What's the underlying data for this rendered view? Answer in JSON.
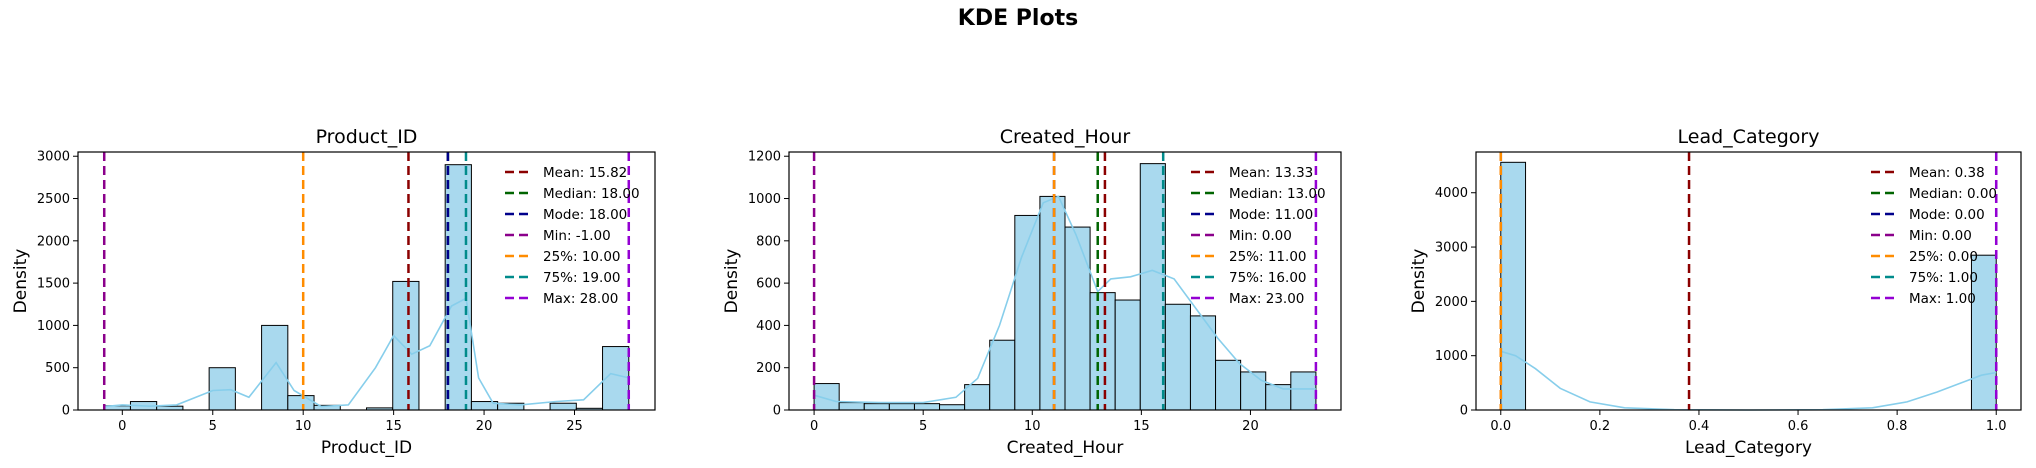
{
  "figure": {
    "suptitle": "KDE Plots"
  },
  "colors": {
    "bar_fill": "#a9d9ee",
    "bar_edge": "#000000",
    "kde": "#87ceeb",
    "mean": "#8b0000",
    "median": "#006400",
    "mode": "#00008b",
    "min": "#8b008b",
    "p25": "#ff8c00",
    "p75": "#008b8b",
    "max": "#9400d3"
  },
  "chart_data": [
    {
      "type": "bar",
      "title": "Product_ID",
      "xlabel": "Product_ID",
      "ylabel": "Density",
      "xlim": [
        -2.45,
        29.45
      ],
      "ylim": [
        0,
        3050
      ],
      "xticks": [
        0,
        5,
        10,
        15,
        20,
        25
      ],
      "yticks": [
        0,
        500,
        1000,
        1500,
        2000,
        2500,
        3000
      ],
      "histogram": {
        "bin_start": -1,
        "bin_width": 1.45,
        "counts": [
          50,
          100,
          45,
          0,
          500,
          0,
          1000,
          170,
          55,
          0,
          25,
          1520,
          0,
          2900,
          100,
          80,
          0,
          80,
          20,
          750
        ]
      },
      "kde": [
        [
          -1,
          40
        ],
        [
          0,
          60
        ],
        [
          1.5,
          45
        ],
        [
          3,
          60
        ],
        [
          5,
          230
        ],
        [
          6,
          240
        ],
        [
          7,
          150
        ],
        [
          8.5,
          560
        ],
        [
          9.5,
          230
        ],
        [
          11,
          40
        ],
        [
          12.5,
          60
        ],
        [
          14,
          500
        ],
        [
          15,
          880
        ],
        [
          16,
          660
        ],
        [
          17,
          760
        ],
        [
          18.2,
          1230
        ],
        [
          19,
          1320
        ],
        [
          19.7,
          380
        ],
        [
          20.5,
          80
        ],
        [
          22,
          60
        ],
        [
          24,
          100
        ],
        [
          25.5,
          120
        ],
        [
          27,
          430
        ],
        [
          28,
          380
        ]
      ],
      "stats": [
        {
          "key": "mean",
          "label": "Mean: 15.82",
          "value": 15.82
        },
        {
          "key": "median",
          "label": "Median: 18.00",
          "value": 18.0
        },
        {
          "key": "mode",
          "label": "Mode: 18.00",
          "value": 18.0
        },
        {
          "key": "min",
          "label": "Min: -1.00",
          "value": -1.0
        },
        {
          "key": "p25",
          "label": "25%: 10.00",
          "value": 10.0
        },
        {
          "key": "p75",
          "label": "75%: 19.00",
          "value": 19.0
        },
        {
          "key": "max",
          "label": "Max: 28.00",
          "value": 28.0
        }
      ],
      "legend": "upper right"
    },
    {
      "type": "bar",
      "title": "Created_Hour",
      "xlabel": "Created_Hour",
      "ylabel": "Density",
      "xlim": [
        -1.15,
        24.15
      ],
      "ylim": [
        0,
        1220
      ],
      "xticks": [
        0,
        5,
        10,
        15,
        20
      ],
      "yticks": [
        0,
        200,
        400,
        600,
        800,
        1000,
        1200
      ],
      "histogram": {
        "bin_start": 0,
        "bin_width": 1.15,
        "counts": [
          125,
          35,
          30,
          30,
          30,
          25,
          120,
          330,
          920,
          1010,
          865,
          555,
          520,
          1165,
          500,
          445,
          235,
          180,
          120,
          180
        ]
      },
      "kde": [
        [
          0,
          70
        ],
        [
          1,
          40
        ],
        [
          3,
          35
        ],
        [
          5,
          35
        ],
        [
          6.5,
          60
        ],
        [
          7.5,
          150
        ],
        [
          8.5,
          400
        ],
        [
          9.5,
          720
        ],
        [
          10.5,
          980
        ],
        [
          11.2,
          1010
        ],
        [
          12,
          830
        ],
        [
          13,
          560
        ],
        [
          13.6,
          620
        ],
        [
          14.5,
          630
        ],
        [
          15.5,
          660
        ],
        [
          16.5,
          620
        ],
        [
          17.5,
          480
        ],
        [
          18.5,
          340
        ],
        [
          19.5,
          220
        ],
        [
          20.5,
          140
        ],
        [
          21.5,
          100
        ],
        [
          23,
          100
        ]
      ],
      "stats": [
        {
          "key": "mean",
          "label": "Mean: 13.33",
          "value": 13.33
        },
        {
          "key": "median",
          "label": "Median: 13.00",
          "value": 13.0
        },
        {
          "key": "mode",
          "label": "Mode: 11.00",
          "value": 11.0
        },
        {
          "key": "min",
          "label": "Min: 0.00",
          "value": 0.0
        },
        {
          "key": "p25",
          "label": "25%: 11.00",
          "value": 11.0
        },
        {
          "key": "p75",
          "label": "75%: 16.00",
          "value": 16.0
        },
        {
          "key": "max",
          "label": "Max: 23.00",
          "value": 23.0
        }
      ],
      "legend": "upper right"
    },
    {
      "type": "bar",
      "title": "Lead_Category",
      "xlabel": "Lead_Category",
      "ylabel": "Density",
      "xlim": [
        -0.05,
        1.05
      ],
      "ylim": [
        0,
        4750
      ],
      "xticks": [
        0.0,
        0.2,
        0.4,
        0.6,
        0.8,
        1.0
      ],
      "yticks": [
        0,
        1000,
        2000,
        3000,
        4000
      ],
      "histogram": {
        "bin_start": 0,
        "bin_width": 0.05,
        "counts": [
          4560,
          0,
          0,
          0,
          0,
          0,
          0,
          0,
          0,
          0,
          0,
          0,
          0,
          0,
          0,
          0,
          0,
          0,
          0,
          2850
        ]
      },
      "kde": [
        [
          0,
          1080
        ],
        [
          0.03,
          1000
        ],
        [
          0.07,
          760
        ],
        [
          0.12,
          400
        ],
        [
          0.18,
          150
        ],
        [
          0.25,
          40
        ],
        [
          0.35,
          5
        ],
        [
          0.5,
          0
        ],
        [
          0.65,
          5
        ],
        [
          0.75,
          40
        ],
        [
          0.82,
          150
        ],
        [
          0.88,
          330
        ],
        [
          0.93,
          500
        ],
        [
          0.97,
          640
        ],
        [
          1,
          690
        ]
      ],
      "stats": [
        {
          "key": "mean",
          "label": "Mean: 0.38",
          "value": 0.38
        },
        {
          "key": "median",
          "label": "Median: 0.00",
          "value": 0.0
        },
        {
          "key": "mode",
          "label": "Mode: 0.00",
          "value": 0.0
        },
        {
          "key": "min",
          "label": "Min: 0.00",
          "value": 0.0
        },
        {
          "key": "p25",
          "label": "25%: 0.00",
          "value": 0.0
        },
        {
          "key": "p75",
          "label": "75%: 1.00",
          "value": 1.0
        },
        {
          "key": "max",
          "label": "Max: 1.00",
          "value": 1.0
        }
      ],
      "legend": "upper right"
    }
  ]
}
